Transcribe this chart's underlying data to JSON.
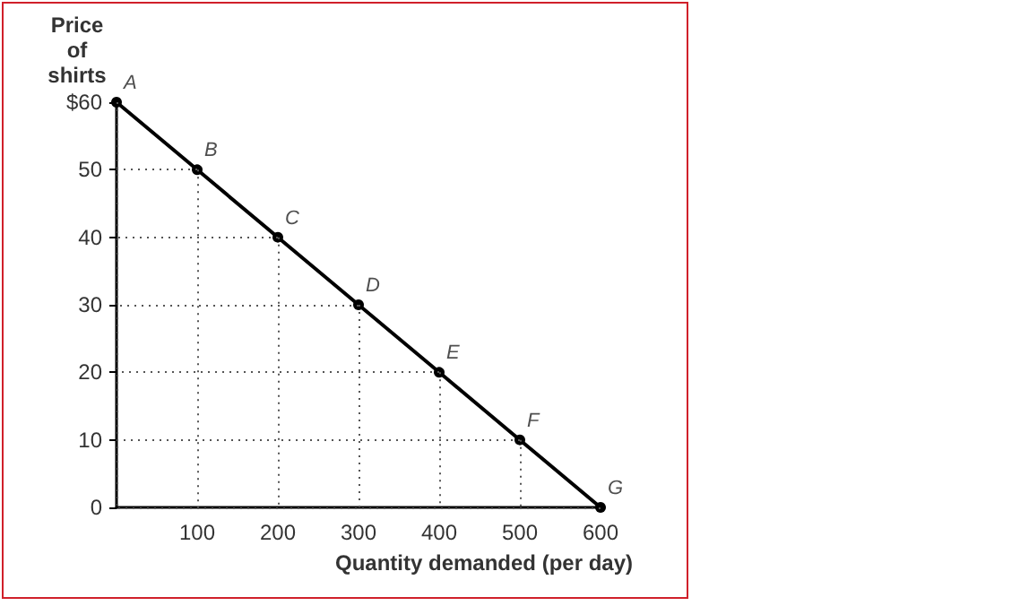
{
  "chart_data": {
    "type": "line",
    "xlabel": "Quantity demanded (per day)",
    "ylabel": "Price\nof\nshirts",
    "x": [
      0,
      100,
      200,
      300,
      400,
      500,
      600
    ],
    "series": [
      {
        "color": "#000000",
        "values": [
          60,
          50,
          40,
          30,
          20,
          10,
          0
        ]
      }
    ],
    "xlim": [
      0,
      600
    ],
    "ylim": [
      0,
      60
    ],
    "xticks": [
      100,
      200,
      300,
      400,
      500,
      600
    ],
    "yticks": [
      0,
      10,
      20,
      30,
      40,
      50,
      {
        "value": 60,
        "label": "$60"
      }
    ],
    "marker": "circle",
    "line_style": "solid",
    "grid": true,
    "annotations": [
      {
        "text": "A",
        "x": 0,
        "y": 60
      },
      {
        "text": "B",
        "x": 100,
        "y": 50
      },
      {
        "text": "C",
        "x": 200,
        "y": 40
      },
      {
        "text": "D",
        "x": 300,
        "y": 30
      },
      {
        "text": "E",
        "x": 400,
        "y": 20
      },
      {
        "text": "F",
        "x": 500,
        "y": 10
      },
      {
        "text": "G",
        "x": 600,
        "y": 0
      }
    ]
  }
}
